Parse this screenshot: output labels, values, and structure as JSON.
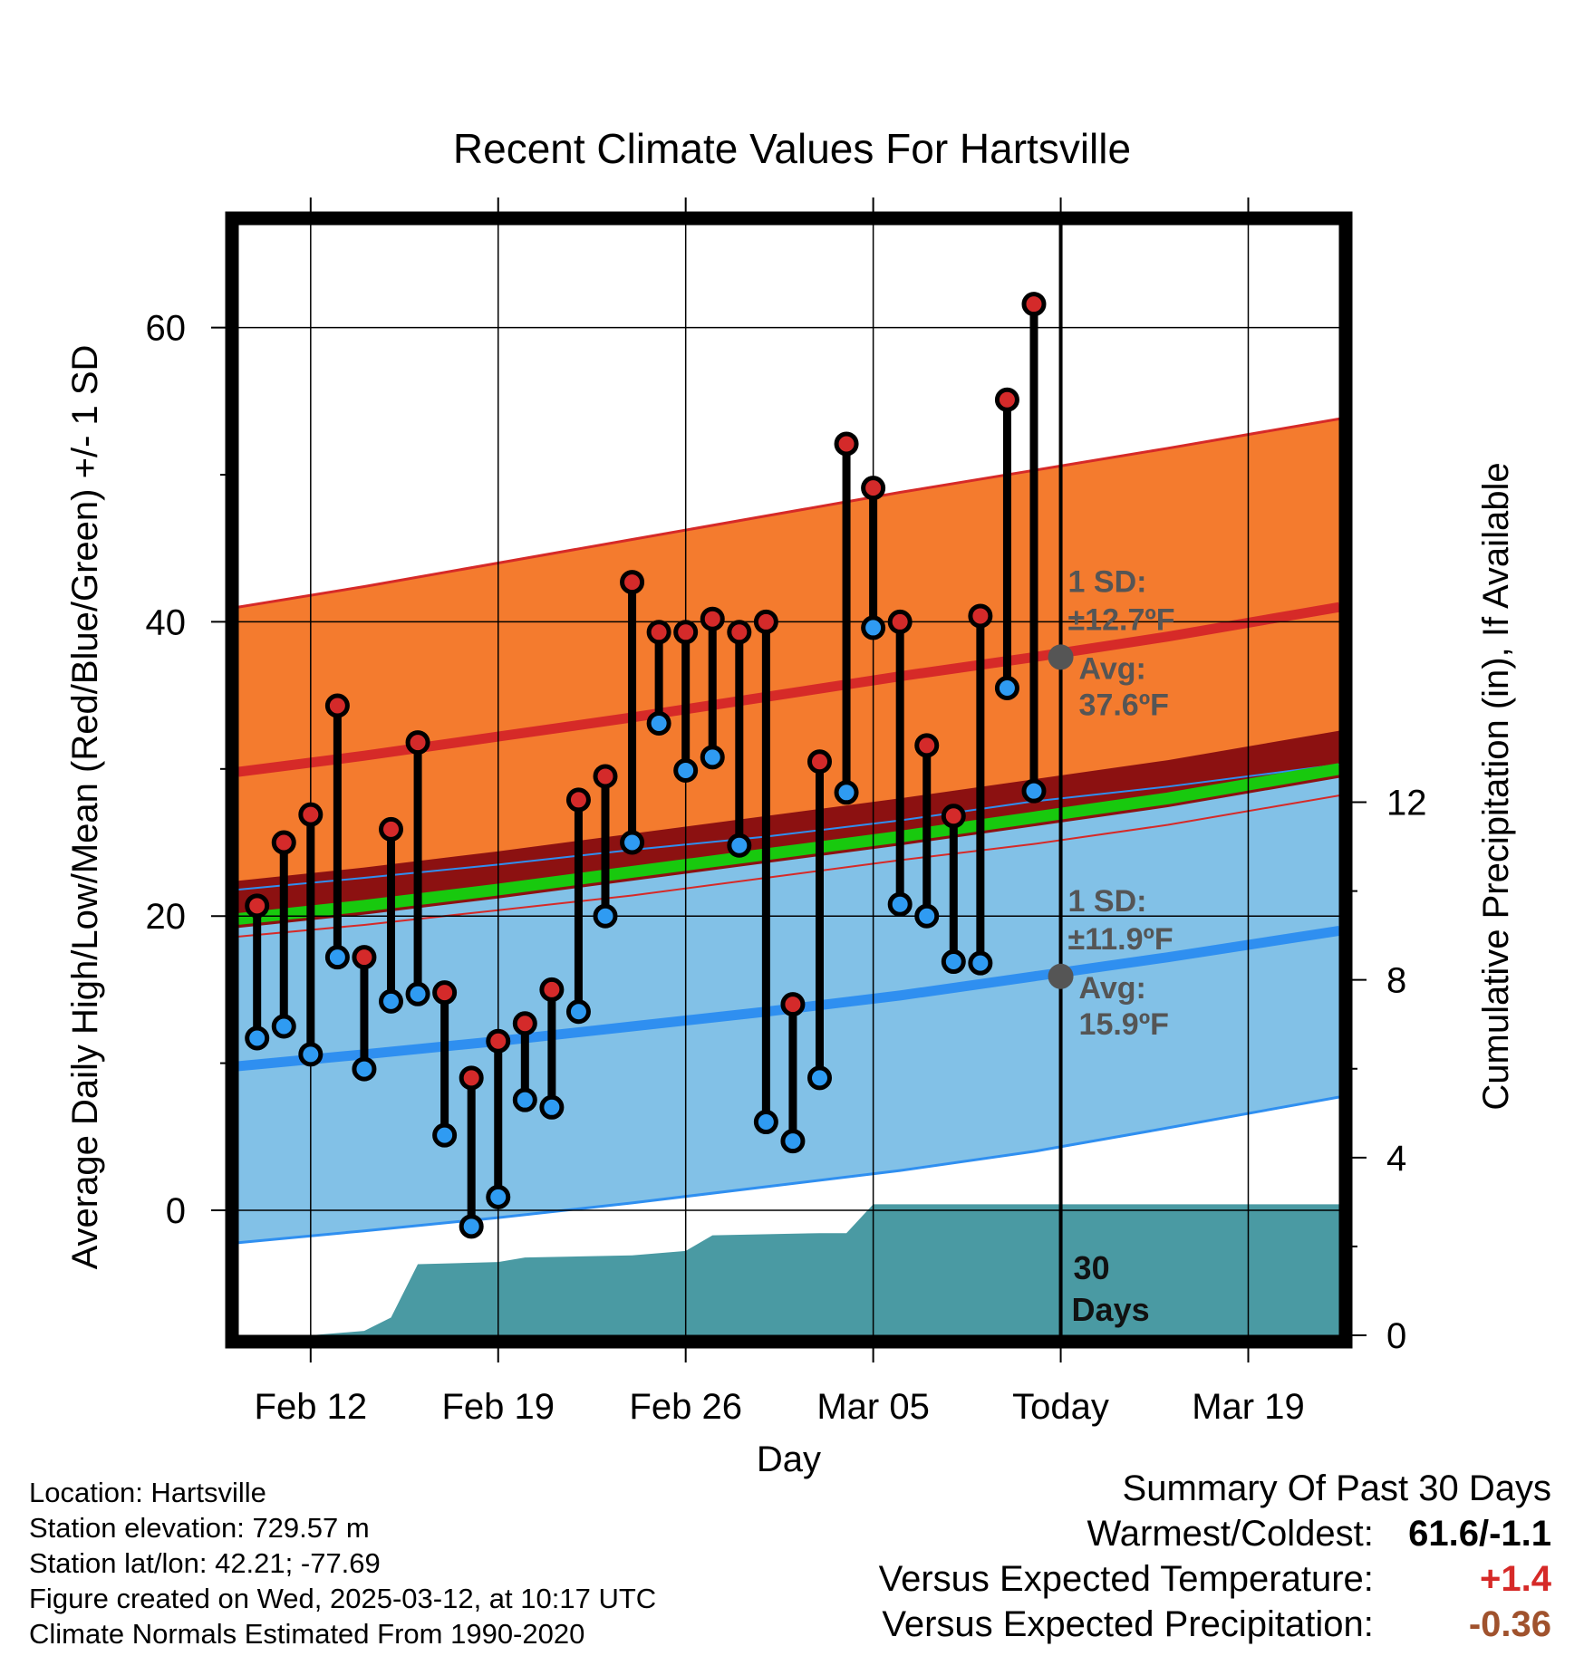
{
  "colors": {
    "high_band": "#f47b2e",
    "high_line": "#d62a28",
    "low_band": "#82c1e7",
    "low_line": "#2f8ff0",
    "mean_band": "#8c1111",
    "mean_line": "#18c90e",
    "precip_fill": "#4a9aa3",
    "high_dot": "#d42a2a",
    "low_dot": "#2f9bf2",
    "annotation": "#555555",
    "anomaly_temp": "#d62a28",
    "anomaly_precip": "#a0522d"
  },
  "chart_data": {
    "type": "line",
    "title": "Recent Climate Values For Hartsville",
    "xlabel": "Day",
    "ylabel_left": "Average Daily High/Low/Mean (Red/Blue/Green) +/- 1 SD",
    "ylabel_right": "Cumulative Precipitation (in), If Available",
    "x_ticks": [
      "Feb 12",
      "Feb 19",
      "Feb 26",
      "Mar 05",
      "Today",
      "Mar 19"
    ],
    "x_tick_days": [
      43,
      50,
      57,
      64,
      71,
      78
    ],
    "x_range": [
      40.3,
      81.4
    ],
    "y_range_left": [
      -8.5,
      67
    ],
    "y_ticks_left": [
      0,
      20,
      40,
      60
    ],
    "y_range_right": [
      0,
      25
    ],
    "y_ticks_right": [
      0,
      4,
      8,
      12
    ],
    "today_day": 71,
    "normals": {
      "days": [
        40.3,
        45,
        50,
        55,
        60,
        65,
        70,
        75,
        81.4
      ],
      "high_avg": [
        29.8,
        30.9,
        32.2,
        33.5,
        34.9,
        36.3,
        37.6,
        39.0,
        41.0
      ],
      "high_sd": [
        11.2,
        11.5,
        11.8,
        12.1,
        12.3,
        12.5,
        12.7,
        12.8,
        12.8
      ],
      "low_avg": [
        9.8,
        10.6,
        11.5,
        12.5,
        13.5,
        14.6,
        15.9,
        17.2,
        19.0
      ],
      "low_sd": [
        12.0,
        12.0,
        12.0,
        12.0,
        11.9,
        11.9,
        11.9,
        11.6,
        11.3
      ],
      "mean_avg": [
        19.8,
        20.7,
        21.8,
        23.0,
        24.2,
        25.4,
        26.7,
        28.0,
        30.0
      ]
    },
    "observed": {
      "days": [
        41,
        42,
        43,
        44,
        45,
        46,
        47,
        48,
        49,
        50,
        51,
        52,
        53,
        54,
        55,
        56,
        57,
        58,
        59,
        60,
        61,
        62,
        63,
        64,
        65,
        66,
        67,
        68,
        69,
        70
      ],
      "highs": [
        20.7,
        25.0,
        26.9,
        34.3,
        17.2,
        25.9,
        31.8,
        14.8,
        9.0,
        11.5,
        12.7,
        15.0,
        27.9,
        29.5,
        42.7,
        39.3,
        39.3,
        40.2,
        39.3,
        40.0,
        14.0,
        30.5,
        52.1,
        49.1,
        40.0,
        31.6,
        26.8,
        40.4,
        55.1,
        61.6
      ],
      "lows": [
        11.7,
        12.5,
        10.6,
        17.2,
        9.6,
        14.2,
        14.7,
        5.1,
        -1.1,
        0.9,
        7.5,
        7.0,
        13.5,
        20.0,
        25.0,
        33.1,
        29.9,
        30.8,
        24.8,
        6.0,
        4.7,
        9.0,
        28.4,
        39.6,
        20.8,
        20.0,
        16.9,
        16.8,
        35.5,
        28.5
      ]
    },
    "precip": {
      "days": [
        40.3,
        43,
        45,
        46,
        47,
        50,
        51,
        55,
        57,
        58,
        62,
        63,
        64,
        81.4
      ],
      "cumulative": [
        0.0,
        0.0,
        0.1,
        0.4,
        1.6,
        1.65,
        1.75,
        1.8,
        1.9,
        2.25,
        2.3,
        2.3,
        2.95,
        2.95
      ]
    },
    "annotations": {
      "high_sd_label": "1 SD:",
      "high_sd_value": "±12.7ºF",
      "high_avg_label": "Avg:",
      "high_avg_value": "37.6ºF",
      "low_sd_label": "1 SD:",
      "low_sd_value": "±11.9ºF",
      "low_avg_label": "Avg:",
      "low_avg_value": "15.9ºF",
      "days_line1": "30",
      "days_line2": "Days"
    }
  },
  "info": {
    "location": "Location: Hartsville",
    "elevation": "Station elevation: 729.57 m",
    "latlon": "Station lat/lon: 42.21; -77.69",
    "created": "Figure created on Wed, 2025-03-12, at 10:17 UTC",
    "normals": "Climate Normals Estimated From 1990-2020"
  },
  "summary": {
    "title": "Summary Of Past 30 Days",
    "extremes_label": "Warmest/Coldest:",
    "extremes_value": "61.6/-1.1",
    "temp_label": "Versus Expected Temperature:",
    "temp_value": "+1.4",
    "precip_label": "Versus Expected Precipitation:",
    "precip_value": "-0.36"
  }
}
